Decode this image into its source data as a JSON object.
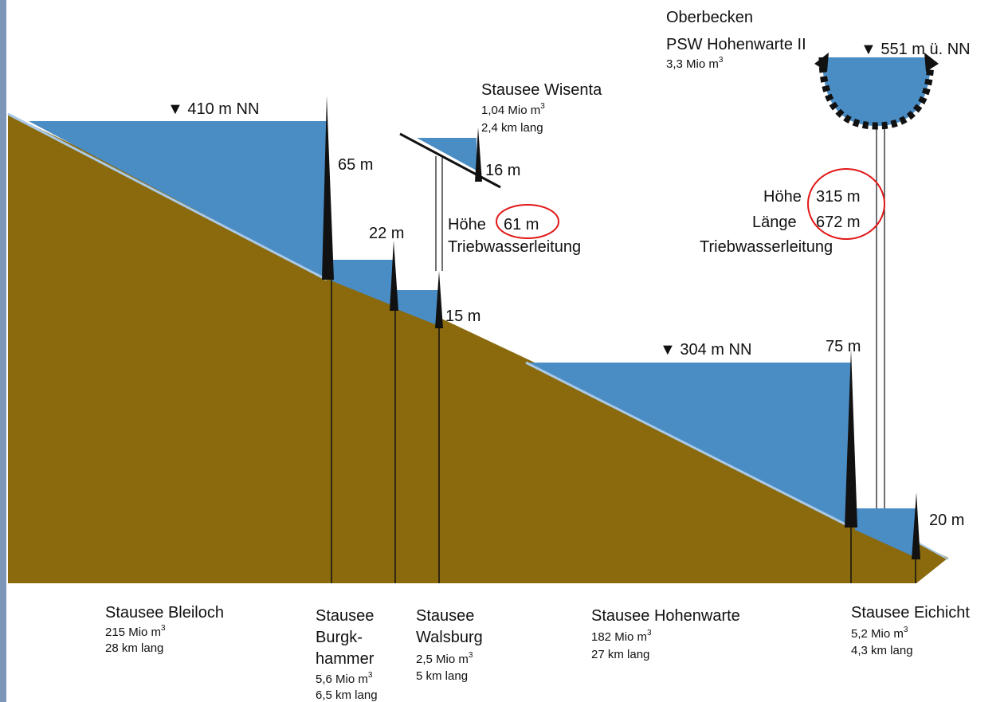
{
  "colors": {
    "ground": "#8a6a0c",
    "water": "#4a8cc4",
    "water_light": "#a9c9e6",
    "left_bar": "#7d97b9",
    "highlight": "#e01818",
    "structure": "#111111"
  },
  "levels": {
    "bleiloch_level": "▼ 410 m NN",
    "hohenwarte_level": "▼ 304 m NN",
    "oberbecken_level": "▼ 551 m ü. NN"
  },
  "dams": {
    "bleiloch_height": "65 m",
    "burgkhammer_height": "22 m",
    "walsburg_height": "15 m",
    "wisenta_height": "16 m",
    "hohenwarte_height": "75 m",
    "eichicht_height": "20 m"
  },
  "wisenta": {
    "name": "Stausee Wisenta",
    "volume": "1,04 Mio m",
    "volume_exp": "3",
    "length": "2,4 km lang",
    "pipe_height_label": "Höhe",
    "pipe_height_value": "61 m",
    "pipe_name": "Triebwasserleitung"
  },
  "oberbecken": {
    "name": "Oberbecken",
    "name2": "PSW Hohenwarte II",
    "volume": "3,3 Mio m",
    "volume_exp": "3",
    "pipe_height_label": "Höhe",
    "pipe_height_value": "315 m",
    "pipe_length_label": "Länge",
    "pipe_length_value": "672 m",
    "pipe_name": "Triebwasserleitung"
  },
  "reservoirs": {
    "bleiloch": {
      "name": "Stausee Bleiloch",
      "volume": "215 Mio m",
      "volume_exp": "3",
      "length": "28 km lang"
    },
    "burgkhammer": {
      "name1": "Stausee",
      "name2": "Burgk-",
      "name3": "hammer",
      "volume": "5,6 Mio m",
      "volume_exp": "3",
      "length": "6,5 km lang"
    },
    "walsburg": {
      "name1": "Stausee",
      "name2": "Walsburg",
      "volume": "2,5 Mio m",
      "volume_exp": "3",
      "length": "5 km lang"
    },
    "hohenwarte": {
      "name": "Stausee Hohenwarte",
      "volume": "182 Mio m",
      "volume_exp": "3",
      "length": "27 km lang"
    },
    "eichicht": {
      "name": "Stausee Eichicht",
      "volume": "5,2 Mio m",
      "volume_exp": "3",
      "length": "4,3 km lang"
    }
  }
}
